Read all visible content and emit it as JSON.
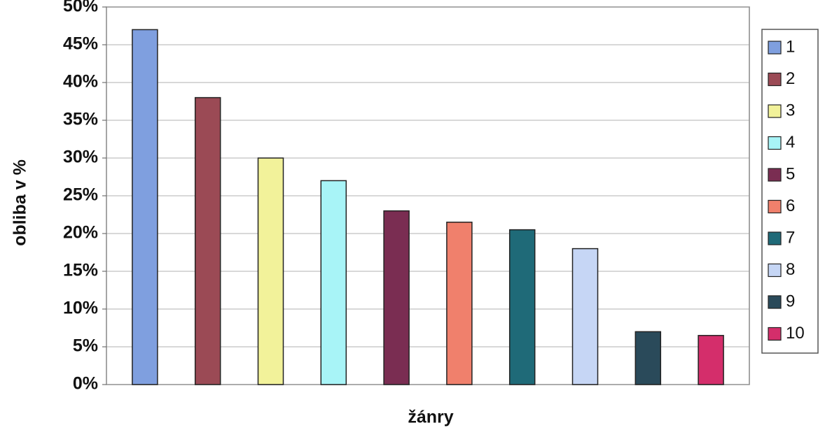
{
  "chart_data": {
    "type": "bar",
    "ylabel": "obliba v %",
    "xlabel": "žánry",
    "categories": [
      null
    ],
    "series": [
      {
        "name": "1",
        "color": "#7f9fdf",
        "values": [
          47
        ]
      },
      {
        "name": "2",
        "color": "#9b4a55",
        "values": [
          38
        ]
      },
      {
        "name": "3",
        "color": "#f2f29a",
        "values": [
          30
        ]
      },
      {
        "name": "4",
        "color": "#a8f4f7",
        "values": [
          27
        ]
      },
      {
        "name": "5",
        "color": "#7a2d52",
        "values": [
          23
        ]
      },
      {
        "name": "6",
        "color": "#f0806c",
        "values": [
          21.5
        ]
      },
      {
        "name": "7",
        "color": "#1f6a78",
        "values": [
          20.5
        ]
      },
      {
        "name": "8",
        "color": "#c6d6f5",
        "values": [
          18
        ]
      },
      {
        "name": "9",
        "color": "#2a4a5a",
        "values": [
          7
        ]
      },
      {
        "name": "10",
        "color": "#d42e6b",
        "values": [
          6.5
        ]
      }
    ],
    "ylim": [
      0,
      50
    ],
    "yticks": [
      {
        "value": 0,
        "label": "0%"
      },
      {
        "value": 5,
        "label": "5%"
      },
      {
        "value": 10,
        "label": "10%"
      },
      {
        "value": 15,
        "label": "15%"
      },
      {
        "value": 20,
        "label": "20%"
      },
      {
        "value": 25,
        "label": "25%"
      },
      {
        "value": 30,
        "label": "30%"
      },
      {
        "value": 35,
        "label": "35%"
      },
      {
        "value": 40,
        "label": "40%"
      },
      {
        "value": 45,
        "label": "45%"
      },
      {
        "value": 50,
        "label": "50%"
      }
    ],
    "grid": true,
    "legend": "right"
  }
}
